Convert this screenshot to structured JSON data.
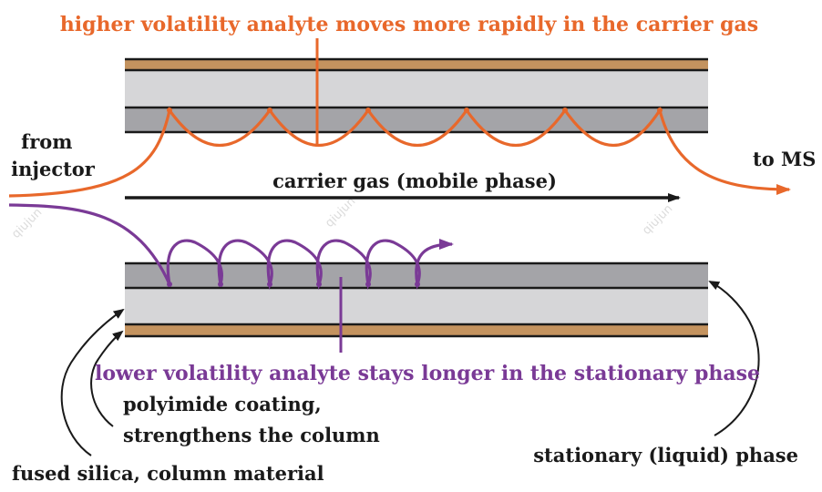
{
  "labels": {
    "top_annotation": "higher volatility analyte moves more rapidly in the carrier gas",
    "bottom_annotation": "lower volatility analyte stays longer in the stationary phase",
    "from_injector_line1": "from",
    "from_injector_line2": "injector",
    "to_ms": "to MS",
    "carrier_gas": "carrier gas (mobile phase)",
    "polyimide_line1": "polyimide coating,",
    "polyimide_line2": "strengthens the column",
    "fused_silica": "fused silica, column material",
    "stationary_phase": "stationary (liquid) phase"
  },
  "watermark": "qiujun",
  "colors": {
    "orange": "#e8682b",
    "purple": "#7a3a96",
    "polyimide": "#c4935f",
    "fused_silica": "#d6d6d8",
    "stationary": "#a4a4a8",
    "line": "#1a1a1a"
  }
}
